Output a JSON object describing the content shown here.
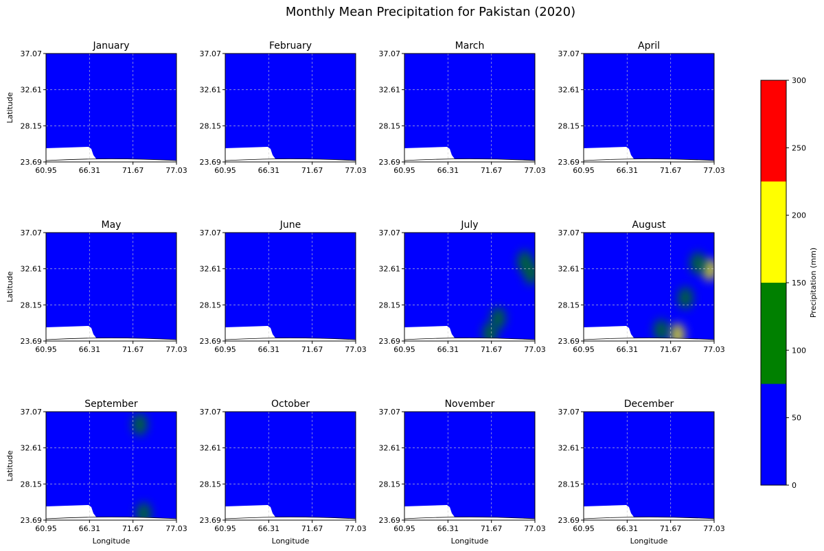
{
  "figure": {
    "title": "Monthly Mean Precipitation for Pakistan (2020)"
  },
  "chart_data": {
    "type": "heatmap",
    "title": "Monthly Mean Precipitation for Pakistan (2020)",
    "panels": [
      {
        "title": "January",
        "hotspots": []
      },
      {
        "title": "February",
        "hotspots": []
      },
      {
        "title": "March",
        "hotspots": []
      },
      {
        "title": "April",
        "hotspots": []
      },
      {
        "title": "May",
        "hotspots": []
      },
      {
        "title": "June",
        "hotspots": []
      },
      {
        "title": "July",
        "hotspots": [
          {
            "lon": 76.6,
            "lat": 32.0,
            "value": 130
          },
          {
            "lon": 75.8,
            "lat": 33.5,
            "value": 85
          },
          {
            "lon": 71.5,
            "lat": 24.6,
            "value": 110
          },
          {
            "lon": 72.5,
            "lat": 26.5,
            "value": 80
          }
        ]
      },
      {
        "title": "August",
        "hotspots": [
          {
            "lon": 76.5,
            "lat": 32.5,
            "value": 190
          },
          {
            "lon": 75.0,
            "lat": 33.3,
            "value": 120
          },
          {
            "lon": 72.5,
            "lat": 24.5,
            "value": 150
          },
          {
            "lon": 70.5,
            "lat": 25.0,
            "value": 100
          },
          {
            "lon": 73.5,
            "lat": 29.0,
            "value": 80
          }
        ]
      },
      {
        "title": "September",
        "hotspots": [
          {
            "lon": 73.0,
            "lat": 24.5,
            "value": 100
          },
          {
            "lon": 72.5,
            "lat": 35.5,
            "value": 80
          }
        ]
      },
      {
        "title": "October",
        "hotspots": []
      },
      {
        "title": "November",
        "hotspots": []
      },
      {
        "title": "December",
        "hotspots": []
      }
    ],
    "xlim": [
      60.95,
      77.03
    ],
    "ylim": [
      23.69,
      37.07
    ],
    "xticks": [
      "60.95",
      "66.31",
      "71.67",
      "77.03"
    ],
    "yticks": [
      "37.07",
      "32.61",
      "28.15",
      "23.69"
    ],
    "xlabel": "Longitude",
    "ylabel": "Latitude",
    "grid": true,
    "colorbar": {
      "label": "Precipitation (mm)",
      "range": [
        0,
        300
      ],
      "ticks": [
        "0",
        "50",
        "100",
        "150",
        "200",
        "250",
        "300"
      ],
      "bins": [
        {
          "from": 0,
          "to": 75,
          "color": "#0000ff"
        },
        {
          "from": 75,
          "to": 150,
          "color": "#008000"
        },
        {
          "from": 150,
          "to": 225,
          "color": "#ffff00"
        },
        {
          "from": 225,
          "to": 300,
          "color": "#ff0000"
        }
      ]
    }
  }
}
